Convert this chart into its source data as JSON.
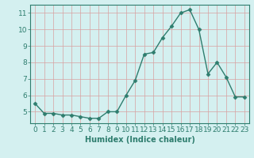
{
  "x": [
    0,
    1,
    2,
    3,
    4,
    5,
    6,
    7,
    8,
    9,
    10,
    11,
    12,
    13,
    14,
    15,
    16,
    17,
    18,
    19,
    20,
    21,
    22,
    23
  ],
  "y": [
    5.5,
    4.9,
    4.9,
    4.8,
    4.8,
    4.7,
    4.6,
    4.6,
    5.0,
    5.0,
    6.0,
    6.9,
    8.5,
    8.6,
    9.5,
    10.2,
    11.0,
    11.2,
    10.0,
    7.3,
    8.0,
    7.1,
    5.9,
    5.9
  ],
  "line_color": "#2e7d6e",
  "marker": "D",
  "markersize": 2.5,
  "linewidth": 1.0,
  "xlabel": "Humidex (Indice chaleur)",
  "xlim": [
    -0.5,
    23.5
  ],
  "ylim": [
    4.3,
    11.5
  ],
  "xticks": [
    0,
    1,
    2,
    3,
    4,
    5,
    6,
    7,
    8,
    9,
    10,
    11,
    12,
    13,
    14,
    15,
    16,
    17,
    18,
    19,
    20,
    21,
    22,
    23
  ],
  "yticks": [
    5,
    6,
    7,
    8,
    9,
    10,
    11
  ],
  "bg_color": "#d4f0f0",
  "grid_color_major": "#b8d8d8",
  "grid_color_minor": "#e8f8f8",
  "axis_color": "#2e7d6e",
  "xlabel_fontsize": 7,
  "tick_fontsize": 6.5
}
